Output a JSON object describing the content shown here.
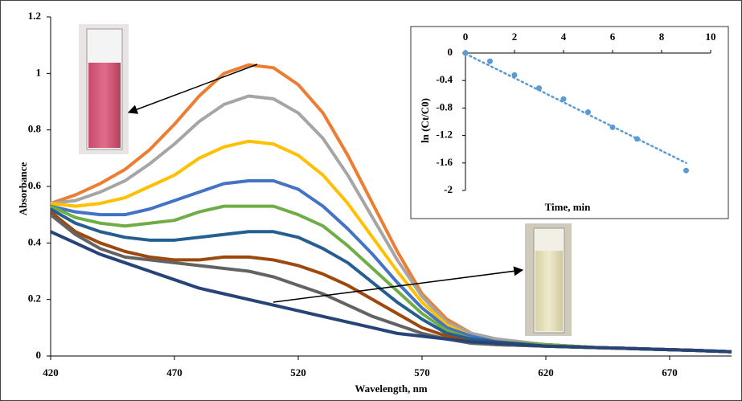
{
  "chart_data": [
    {
      "type": "line",
      "x_label": "Wavelength, nm",
      "y_label": "Absorbance",
      "x": [
        420,
        430,
        440,
        450,
        460,
        470,
        480,
        490,
        500,
        510,
        520,
        530,
        540,
        550,
        560,
        570,
        580,
        590,
        600,
        620,
        640,
        660,
        680,
        695
      ],
      "series": [
        {
          "color": "#ed7d31",
          "values": [
            0.54,
            0.57,
            0.61,
            0.66,
            0.73,
            0.82,
            0.92,
            1.0,
            1.03,
            1.02,
            0.96,
            0.86,
            0.71,
            0.54,
            0.37,
            0.22,
            0.13,
            0.08,
            0.06,
            0.04,
            0.03,
            0.025,
            0.02,
            0.015
          ]
        },
        {
          "color": "#a5a5a5",
          "values": [
            0.54,
            0.55,
            0.58,
            0.62,
            0.68,
            0.75,
            0.83,
            0.89,
            0.92,
            0.91,
            0.86,
            0.77,
            0.64,
            0.49,
            0.34,
            0.21,
            0.12,
            0.08,
            0.06,
            0.04,
            0.03,
            0.025,
            0.02,
            0.015
          ]
        },
        {
          "color": "#ffc000",
          "values": [
            0.54,
            0.53,
            0.54,
            0.56,
            0.6,
            0.64,
            0.7,
            0.74,
            0.76,
            0.75,
            0.71,
            0.64,
            0.54,
            0.42,
            0.3,
            0.19,
            0.11,
            0.07,
            0.05,
            0.04,
            0.03,
            0.025,
            0.02,
            0.015
          ]
        },
        {
          "color": "#4472c4",
          "values": [
            0.53,
            0.51,
            0.5,
            0.5,
            0.52,
            0.55,
            0.58,
            0.61,
            0.62,
            0.62,
            0.59,
            0.53,
            0.45,
            0.36,
            0.26,
            0.17,
            0.1,
            0.07,
            0.05,
            0.04,
            0.03,
            0.025,
            0.02,
            0.015
          ]
        },
        {
          "color": "#70ad47",
          "values": [
            0.53,
            0.49,
            0.47,
            0.46,
            0.47,
            0.48,
            0.51,
            0.53,
            0.53,
            0.53,
            0.5,
            0.46,
            0.39,
            0.31,
            0.23,
            0.15,
            0.09,
            0.06,
            0.05,
            0.04,
            0.03,
            0.025,
            0.02,
            0.015
          ]
        },
        {
          "color": "#255e91",
          "values": [
            0.52,
            0.47,
            0.44,
            0.42,
            0.41,
            0.41,
            0.42,
            0.43,
            0.44,
            0.44,
            0.42,
            0.38,
            0.33,
            0.26,
            0.19,
            0.13,
            0.08,
            0.06,
            0.05,
            0.035,
            0.03,
            0.025,
            0.02,
            0.015
          ]
        },
        {
          "color": "#9e480e",
          "values": [
            0.51,
            0.44,
            0.4,
            0.37,
            0.35,
            0.34,
            0.34,
            0.35,
            0.35,
            0.34,
            0.32,
            0.29,
            0.25,
            0.2,
            0.15,
            0.1,
            0.07,
            0.05,
            0.04,
            0.035,
            0.03,
            0.025,
            0.02,
            0.015
          ]
        },
        {
          "color": "#636363",
          "values": [
            0.5,
            0.43,
            0.38,
            0.35,
            0.34,
            0.33,
            0.32,
            0.31,
            0.3,
            0.28,
            0.25,
            0.22,
            0.18,
            0.14,
            0.11,
            0.08,
            0.06,
            0.045,
            0.04,
            0.035,
            0.03,
            0.025,
            0.02,
            0.015
          ]
        },
        {
          "color": "#264478",
          "values": [
            0.44,
            0.4,
            0.36,
            0.33,
            0.3,
            0.27,
            0.24,
            0.22,
            0.2,
            0.18,
            0.16,
            0.14,
            0.12,
            0.1,
            0.08,
            0.07,
            0.06,
            0.05,
            0.045,
            0.035,
            0.03,
            0.025,
            0.02,
            0.015
          ]
        }
      ],
      "xlim": [
        420,
        695
      ],
      "xticks": [
        420,
        470,
        520,
        570,
        620,
        670
      ],
      "ylim": [
        0,
        1.2
      ],
      "yticks": [
        0,
        0.2,
        0.4,
        0.6,
        0.8,
        1,
        1.2
      ]
    },
    {
      "type": "scatter",
      "x_label": "Time, min",
      "y_label": "ln (Ct/C0)",
      "x": [
        0,
        1,
        2,
        3,
        4,
        5,
        6,
        7,
        9
      ],
      "values": [
        0,
        -0.12,
        -0.32,
        -0.51,
        -0.67,
        -0.86,
        -1.08,
        -1.25,
        -1.71
      ],
      "color": "#5b9bd5",
      "trendline": {
        "x": [
          0,
          9
        ],
        "values": [
          -0.01,
          -1.6
        ]
      },
      "xlim": [
        0,
        10
      ],
      "xticks": [
        0,
        2,
        4,
        6,
        8,
        10
      ],
      "ylim": [
        -2,
        0
      ],
      "yticks": [
        0,
        -0.4,
        -0.8,
        -1.2,
        -1.6,
        -2
      ]
    }
  ]
}
